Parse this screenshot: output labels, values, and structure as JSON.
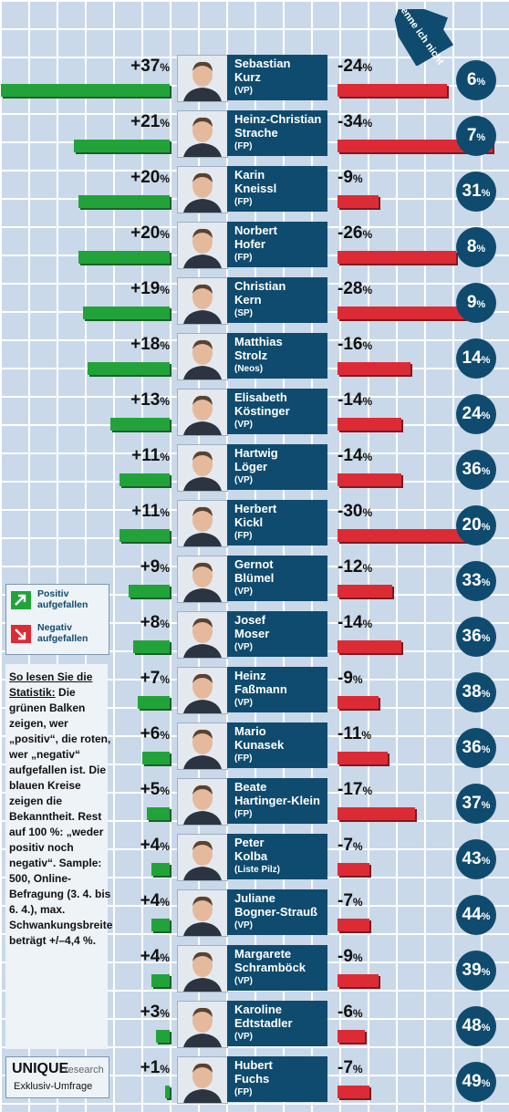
{
  "chart_data": {
    "type": "bar",
    "header_label": "Kenne ich nicht",
    "unit": "%",
    "legend": {
      "positive": "Positiv aufgefallen",
      "negative": "Negativ aufgefallen"
    },
    "colors": {
      "positive": "#22a33a",
      "negative": "#dc2b35",
      "circle": "#0f4b6e"
    },
    "rows": [
      {
        "name": "Sebastian Kurz",
        "party": "(VP)",
        "positive": 37,
        "negative": 24,
        "unknown": 6,
        "pos_label": "+37",
        "neg_label": "-24"
      },
      {
        "name": "Heinz-Christian Strache",
        "party": "(FP)",
        "positive": 21,
        "negative": 34,
        "unknown": 7,
        "pos_label": "+21",
        "neg_label": "-34"
      },
      {
        "name": "Karin Kneissl",
        "party": "(FP)",
        "positive": 20,
        "negative": 9,
        "unknown": 31,
        "pos_label": "+20",
        "neg_label": "-9"
      },
      {
        "name": "Norbert Hofer",
        "party": "(FP)",
        "positive": 20,
        "negative": 26,
        "unknown": 8,
        "pos_label": "+20",
        "neg_label": "-26"
      },
      {
        "name": "Christian Kern",
        "party": "(SP)",
        "positive": 19,
        "negative": 28,
        "unknown": 9,
        "pos_label": "+19",
        "neg_label": "-28"
      },
      {
        "name": "Matthias Strolz",
        "party": "(Neos)",
        "positive": 18,
        "negative": 16,
        "unknown": 14,
        "pos_label": "+18",
        "neg_label": "-16"
      },
      {
        "name": "Elisabeth Köstinger",
        "party": "(VP)",
        "positive": 13,
        "negative": 14,
        "unknown": 24,
        "pos_label": "+13",
        "neg_label": "-14"
      },
      {
        "name": "Hartwig Löger",
        "party": "(VP)",
        "positive": 11,
        "negative": 14,
        "unknown": 36,
        "pos_label": "+11",
        "neg_label": "-14"
      },
      {
        "name": "Herbert Kickl",
        "party": "(FP)",
        "positive": 11,
        "negative": 30,
        "unknown": 20,
        "pos_label": "+11",
        "neg_label": "-30"
      },
      {
        "name": "Gernot Blümel",
        "party": "(VP)",
        "positive": 9,
        "negative": 12,
        "unknown": 33,
        "pos_label": "+9",
        "neg_label": "-12"
      },
      {
        "name": "Josef Moser",
        "party": "(VP)",
        "positive": 8,
        "negative": 14,
        "unknown": 36,
        "pos_label": "+8",
        "neg_label": "-14"
      },
      {
        "name": "Heinz Faßmann",
        "party": "(VP)",
        "positive": 7,
        "negative": 9,
        "unknown": 38,
        "pos_label": "+7",
        "neg_label": "-9"
      },
      {
        "name": "Mario Kunasek",
        "party": "(FP)",
        "positive": 6,
        "negative": 11,
        "unknown": 36,
        "pos_label": "+6",
        "neg_label": "-11"
      },
      {
        "name": "Beate Hartinger-Klein",
        "party": "(FP)",
        "positive": 5,
        "negative": 17,
        "unknown": 37,
        "pos_label": "+5",
        "neg_label": "-17"
      },
      {
        "name": "Peter Kolba",
        "party": "(Liste Pilz)",
        "positive": 4,
        "negative": 7,
        "unknown": 43,
        "pos_label": "+4",
        "neg_label": "-7"
      },
      {
        "name": "Juliane Bogner-Strauß",
        "party": "(VP)",
        "positive": 4,
        "negative": 7,
        "unknown": 44,
        "pos_label": "+4",
        "neg_label": "-7"
      },
      {
        "name": "Margarete Schramböck",
        "party": "(VP)",
        "positive": 4,
        "negative": 9,
        "unknown": 39,
        "pos_label": "+4",
        "neg_label": "-9"
      },
      {
        "name": "Karoline Edtstadler",
        "party": "(VP)",
        "positive": 3,
        "negative": 6,
        "unknown": 48,
        "pos_label": "+3",
        "neg_label": "-6"
      },
      {
        "name": "Hubert Fuchs",
        "party": "(FP)",
        "positive": 1,
        "negative": 7,
        "unknown": 49,
        "pos_label": "+1",
        "neg_label": "-7"
      }
    ]
  },
  "note": {
    "heading": "So lesen Sie die Statistik:",
    "body": "Die grünen Balken zeigen, wer „positiv“, die roten, wer „negativ“ aufgefallen ist. Die blauen Kreise zeigen die Bekanntheit. Rest auf 100 %: „weder positiv noch negativ“. Sample: 500, Online-Befragung (3. 4. bis 6. 4.), max. Schwankungsbreite beträgt +/–4,4 %."
  },
  "brand": {
    "name": "UNIQUE",
    "sub": "research",
    "tag": "Exklusiv-Umfrage"
  }
}
